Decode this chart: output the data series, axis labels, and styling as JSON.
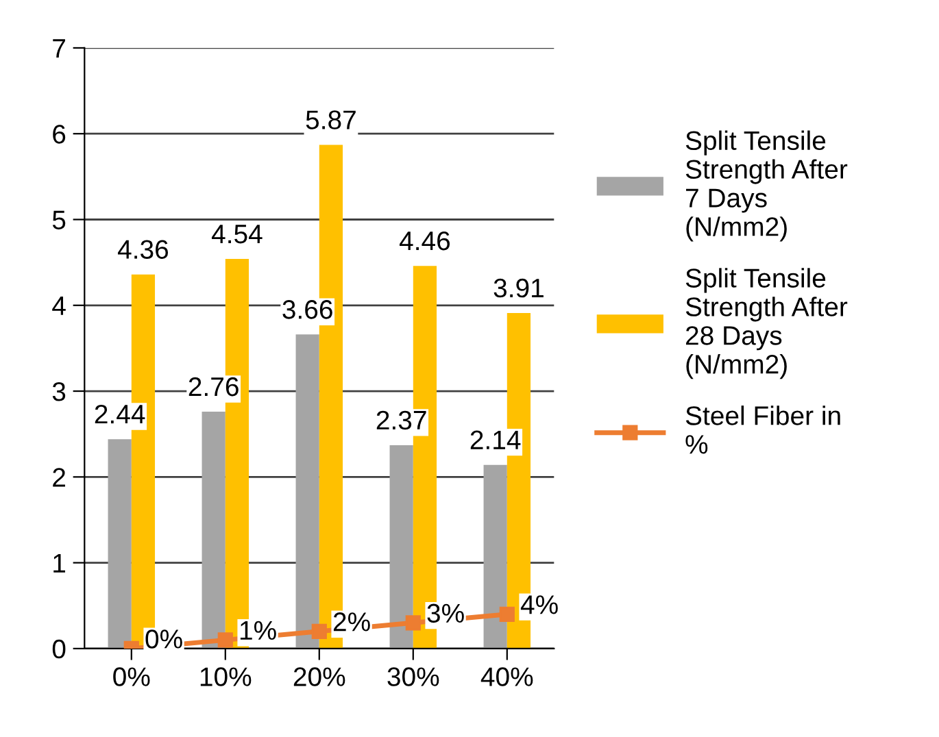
{
  "chart_data": {
    "type": "bar",
    "categories": [
      "0%",
      "10%",
      "20%",
      "30%",
      "40%"
    ],
    "series": [
      {
        "name": "Split Tensile\nStrength After\n7 Days\n(N/mm2)",
        "color": "#a5a5a5",
        "values": [
          2.44,
          2.76,
          3.66,
          2.37,
          2.14
        ],
        "value_labels": [
          "2.44",
          "2.76",
          "3.66",
          "2.37",
          "2.14"
        ]
      },
      {
        "name": "Split Tensile\nStrength After\n28 Days\n(N/mm2)",
        "color": "#ffc000",
        "values": [
          4.36,
          4.54,
          5.87,
          4.46,
          3.91
        ],
        "value_labels": [
          "4.36",
          "4.54",
          "5.87",
          "4.46",
          "3.91"
        ]
      },
      {
        "name": "Steel Fiber in\n%",
        "type": "line",
        "color": "#ed7d31",
        "values": [
          0,
          0.1,
          0.2,
          0.3,
          0.4
        ],
        "value_labels": [
          null,
          null,
          null,
          null,
          null
        ]
      }
    ],
    "annotations": [
      {
        "text": "0%",
        "x": "0%",
        "y": 0
      },
      {
        "text": "1%",
        "x": "10%",
        "y": 0.1
      },
      {
        "text": "2%",
        "x": "20%",
        "y": 0.2
      },
      {
        "text": "3%",
        "x": "30%",
        "y": 0.3
      },
      {
        "text": "4%",
        "x": "40%",
        "y": 0.4
      }
    ],
    "ylim": [
      0,
      7
    ],
    "yticks": [
      0,
      1,
      2,
      3,
      4,
      5,
      6,
      7
    ],
    "grid": "y",
    "legend": "right",
    "marker": "square",
    "line_style": "solid"
  }
}
